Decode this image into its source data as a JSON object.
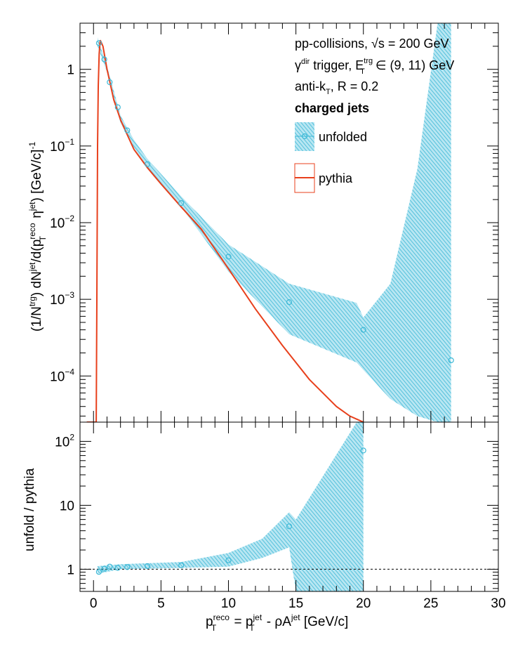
{
  "chart_data": [
    {
      "type": "line",
      "panel": "spectrum",
      "ylabel": "(1/Ntrg) dNjet/d(pTreco ηjet) [GeV/c]-1",
      "ylabel_parts": {
        "a": "(1/N",
        "a_sup": "trg",
        "b": ") dN",
        "b_sup": "jet",
        "c": "/d(p",
        "c_sup": "reco",
        "c_sub": "T",
        "d": " η",
        "d_sup": "jet",
        "e": ") [GeV/c]",
        "e_sup": "-1"
      },
      "x_range": [
        -1,
        30
      ],
      "y_log": true,
      "y_range": [
        2.5e-05,
        4
      ],
      "y_ticks": [
        {
          "value": 1,
          "base": "1",
          "exp": ""
        },
        {
          "value": 0.1,
          "base": "10",
          "exp": "−1"
        },
        {
          "value": 0.01,
          "base": "10",
          "exp": "−2"
        },
        {
          "value": 0.001,
          "base": "10",
          "exp": "−3"
        },
        {
          "value": 0.0001,
          "base": "10",
          "exp": "−4"
        }
      ],
      "annotations": {
        "line1": "pp-collisions, √s = 200 GeV",
        "line2_parts": {
          "a": "γ",
          "a_sup": "dir",
          "b": " trigger, E",
          "b_sup": "trg",
          "b_sub": "T",
          "c": " ∈ (9, 11) GeV"
        },
        "line3_parts": {
          "a": "anti-k",
          "a_sub": "T",
          "b": ", R = 0.2"
        },
        "line4": "charged jets"
      },
      "legend": [
        {
          "label": "unfolded",
          "style": "band-marker"
        },
        {
          "label": "pythia",
          "style": "line"
        }
      ],
      "legend_placement": "top-right",
      "series": [
        {
          "name": "pythia",
          "color": "#e8401c",
          "points": [
            [
              -0.5,
              2.5e-05
            ],
            [
              0.2,
              2.5e-05
            ],
            [
              0.25,
              0.001
            ],
            [
              0.3,
              0.1
            ],
            [
              0.35,
              0.6
            ],
            [
              0.42,
              1.6
            ],
            [
              0.5,
              2.4
            ],
            [
              0.7,
              2.0
            ],
            [
              1.0,
              1.0
            ],
            [
              1.5,
              0.4
            ],
            [
              2.0,
              0.22
            ],
            [
              2.5,
              0.14
            ],
            [
              3.0,
              0.09
            ],
            [
              4.0,
              0.052
            ],
            [
              5.0,
              0.032
            ],
            [
              6.5,
              0.016
            ],
            [
              8.0,
              0.0082
            ],
            [
              10.0,
              0.0025
            ],
            [
              12.0,
              0.00075
            ],
            [
              14.0,
              0.00025
            ],
            [
              16.0,
              9e-05
            ],
            [
              18.0,
              4e-05
            ],
            [
              19.0,
              3e-05
            ],
            [
              20.0,
              2.5e-05
            ]
          ]
        },
        {
          "name": "unfolded",
          "color": "#3cb8d6",
          "points": [
            [
              0.4,
              2.2
            ],
            [
              0.8,
              1.35
            ],
            [
              1.2,
              0.68
            ],
            [
              1.8,
              0.32
            ],
            [
              2.5,
              0.16
            ],
            [
              4.0,
              0.058
            ],
            [
              6.5,
              0.018
            ],
            [
              10.0,
              0.0036
            ],
            [
              14.5,
              0.00092
            ],
            [
              20.0,
              0.0004
            ],
            [
              26.5,
              0.00016
            ]
          ],
          "band": [
            [
              0.3,
              2.0,
              2.6
            ],
            [
              1.0,
              0.92,
              1.1
            ],
            [
              2.0,
              0.2,
              0.25
            ],
            [
              3.0,
              0.095,
              0.12
            ],
            [
              4.0,
              0.052,
              0.068
            ],
            [
              6.5,
              0.016,
              0.022
            ],
            [
              10.0,
              0.0023,
              0.0052
            ],
            [
              14.5,
              0.00035,
              0.0016
            ],
            [
              19.5,
              0.00015,
              0.0009
            ],
            [
              20.0,
              0.00012,
              0.00058
            ],
            [
              22.0,
              5e-05,
              0.0016
            ],
            [
              24.0,
              3e-05,
              0.05
            ],
            [
              25.5,
              2.5e-05,
              4
            ],
            [
              26.5,
              2.5e-05,
              4
            ]
          ]
        }
      ]
    },
    {
      "type": "scatter",
      "panel": "ratio",
      "ylabel": "unfold / pythia",
      "xlabel": "pTreco = pTjet - ρAjet [GeV/c]",
      "xlabel_parts": {
        "a": "p",
        "a_sup": "reco",
        "a_sub": "T",
        "b": " = p",
        "b_sup": "jet",
        "b_sub": "T",
        "c": " - ρA",
        "c_sup": "jet",
        "d": " [GeV/c]"
      },
      "x_range": [
        -1,
        30
      ],
      "x_ticks": [
        0,
        5,
        10,
        15,
        20,
        25,
        30
      ],
      "y_log": true,
      "y_range": [
        0.45,
        200
      ],
      "y_ticks": [
        {
          "value": 1,
          "base": "1",
          "exp": ""
        },
        {
          "value": 10,
          "base": "10",
          "exp": ""
        },
        {
          "value": 100,
          "base": "10",
          "exp": "2"
        }
      ],
      "reference_line": 1,
      "series": [
        {
          "name": "unfolded",
          "color": "#3cb8d6",
          "points": [
            [
              0.4,
              0.91
            ],
            [
              0.8,
              1.02
            ],
            [
              1.2,
              1.1
            ],
            [
              1.8,
              1.05
            ],
            [
              2.5,
              1.08
            ],
            [
              4.0,
              1.12
            ],
            [
              6.5,
              1.15
            ],
            [
              10.0,
              1.38
            ],
            [
              14.5,
              4.7
            ],
            [
              20.0,
              72
            ]
          ],
          "band": [
            [
              0.3,
              0.85,
              1.12
            ],
            [
              2.0,
              1.0,
              1.2
            ],
            [
              6.5,
              1.05,
              1.3
            ],
            [
              10.0,
              1.1,
              1.8
            ],
            [
              12.5,
              1.5,
              3.0
            ],
            [
              14.5,
              2.2,
              7.8
            ],
            [
              15.0,
              0.45,
              6.0
            ],
            [
              19.5,
              0.45,
              200
            ],
            [
              20.0,
              0.45,
              200
            ]
          ]
        }
      ]
    }
  ]
}
